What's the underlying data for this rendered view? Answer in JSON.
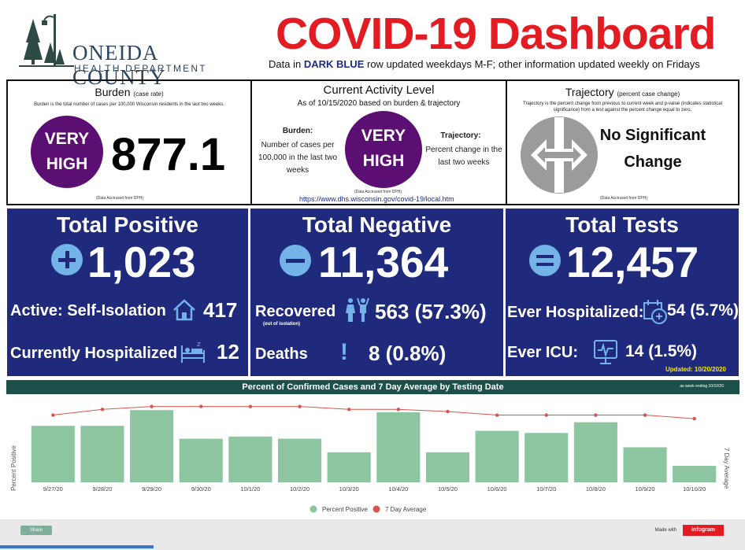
{
  "header": {
    "logo_name": "ONEIDA COUNTY",
    "logo_sub": "HEALTH DEPARTMENT",
    "title": "COVID-19 Dashboard",
    "subtitle_pre": "Data in ",
    "subtitle_bold": "DARK BLUE",
    "subtitle_post": " row updated weekdays M-F;  other information updated weekly on Fridays"
  },
  "burden": {
    "title": "Burden",
    "title_small": "(case rate)",
    "desc": "Burden is the total number of cases per 100,000 Wisconsin residents in the last two weeks.",
    "level_line1": "VERY",
    "level_line2": "HIGH",
    "value": "877.1",
    "accessed": "(Data Accessed from DPH)"
  },
  "activity": {
    "title": "Current Activity Level",
    "as_of": "As of 10/15/2020 based on burden & trajectory",
    "burden_label": "Burden:",
    "burden_desc": "Number of cases per 100,000 in the last two weeks",
    "level_line1": "VERY",
    "level_line2": "HIGH",
    "trajectory_label": "Trajectory:",
    "trajectory_desc": "Percent change in the last two weeks",
    "accessed": "(Data Accessed from DPH)",
    "link": "https://www.dhs.wisconsin.gov/covid-19/local.htm"
  },
  "trajectory": {
    "title": "Trajectory",
    "title_small": "(percent case change)",
    "desc": "Trajectory is the percent change from previous to current week and p-value (indicates statistical significance) from a test against the percent change equal to zero.",
    "status_line1": "No Significant",
    "status_line2": "Change",
    "accessed": "(Data Accessed from DPH)"
  },
  "positive": {
    "title": "Total Positive",
    "value": "1,023",
    "active_label": "Active: Self-Isolation",
    "active_value": "417",
    "hosp_label": "Currently Hospitalized",
    "hosp_value": "12"
  },
  "negative": {
    "title": "Total Negative",
    "value": "11,364",
    "recovered_label": "Recovered",
    "recovered_sub": "(out of isolation)",
    "recovered_value": "563 (57.3%)",
    "deaths_label": "Deaths",
    "deaths_value": "8 (0.8%)"
  },
  "tests": {
    "title": "Total Tests",
    "value": "12,457",
    "ever_hosp_label": "Ever Hospitalized:",
    "ever_hosp_value": "54 (5.7%)",
    "icu_label": "Ever ICU:",
    "icu_value": "14  (1.5%)",
    "updated": "Updated:  10/20/2020"
  },
  "chart_data": {
    "type": "bar",
    "title": "Percent of Confirmed Cases and 7 Day Average by Testing Date",
    "note": "as week ending  10/10/20",
    "categories": [
      "9/27/20",
      "9/28/20",
      "9/29/20",
      "9/30/20",
      "10/1/20",
      "10/2/20",
      "10/3/20",
      "10/4/20",
      "10/5/20",
      "10/6/20",
      "10/7/20",
      "10/8/20",
      "10/9/20",
      "10/10/20"
    ],
    "series": [
      {
        "name": "Percent Positive",
        "type": "bar",
        "color": "#8cc5a0",
        "values": [
          15.8,
          15.8,
          20.2,
          12.2,
          12.8,
          12.2,
          8.4,
          19.6,
          8.4,
          14.4,
          13.8,
          16.8,
          9.8,
          4.6
        ]
      },
      {
        "name": "7 Day Average",
        "type": "line",
        "color": "#d9534f",
        "values": [
          18.8,
          20.4,
          21.2,
          21.2,
          21.2,
          21.2,
          20.4,
          20.4,
          19.8,
          18.8,
          18.8,
          18.8,
          18.8,
          17.8
        ]
      }
    ],
    "ylim": [
      0,
      22
    ],
    "ylabel_left": "Percent Positive",
    "ylabel_right": "7 Day Average",
    "legend_position": "bottom"
  },
  "footer": {
    "share": "Share",
    "made_with": "Made with",
    "brand": "infogram"
  }
}
